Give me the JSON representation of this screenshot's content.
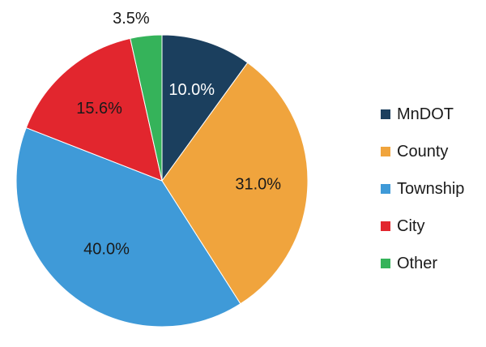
{
  "chart_data": {
    "type": "pie",
    "categories": [
      "MnDOT",
      "County",
      "Township",
      "City",
      "Other"
    ],
    "values": [
      10.0,
      31.0,
      40.0,
      15.6,
      3.5
    ],
    "labels": [
      "10.0%",
      "31.0%",
      "40.0%",
      "15.6%",
      "3.5%"
    ],
    "colors": [
      "#1b3f5e",
      "#f0a43d",
      "#3f9ad8",
      "#e2262e",
      "#35b35a"
    ],
    "label_colors": [
      "#ffffff",
      "#1a1a1a",
      "#1a1a1a",
      "#1a1a1a",
      "#1a1a1a"
    ],
    "start_angle_deg": 0,
    "direction": "clockwise",
    "legend": "right"
  }
}
